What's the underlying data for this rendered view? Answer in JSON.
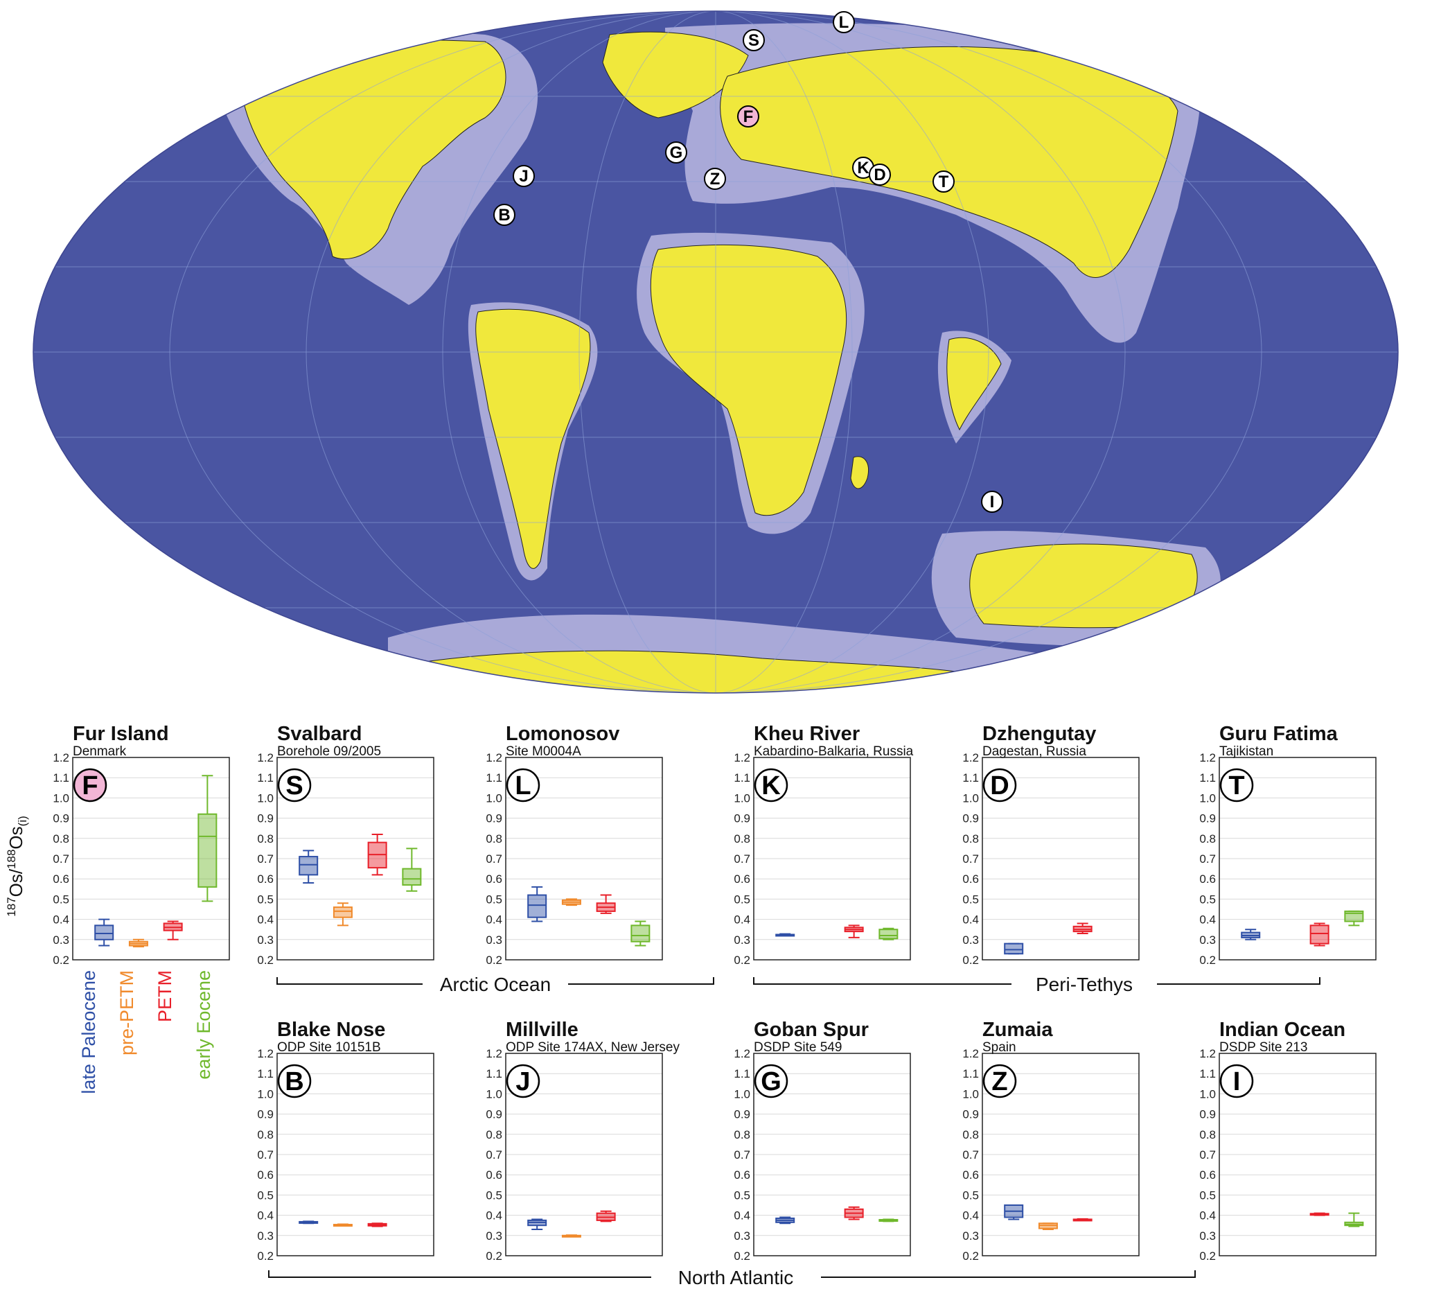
{
  "colors": {
    "ocean": "#4a55a2",
    "shelf": "#a9a9d8",
    "land": "#f0e83c",
    "late_paleocene": "#2e4fa6",
    "pre_petm": "#f08a2c",
    "petm": "#e8202a",
    "early_eocene": "#6fb82c"
  },
  "legend": {
    "late_paleocene": "late Paleocene",
    "pre_petm": "pre-PETM",
    "petm": "PETM",
    "early_eocene": "early Eocene"
  },
  "y_axis": {
    "label_main": "Os/",
    "label_sup1": "187",
    "label_sup2": "188",
    "label_tail": "Os",
    "label_sub": "(i)"
  },
  "groups": {
    "arctic": "Arctic Ocean",
    "tethys": "Peri-Tethys",
    "atlantic": "North Atlantic"
  },
  "map_markers": [
    {
      "letter": "L",
      "highlight": false
    },
    {
      "letter": "S",
      "highlight": false
    },
    {
      "letter": "F",
      "highlight": true
    },
    {
      "letter": "G",
      "highlight": false
    },
    {
      "letter": "J",
      "highlight": false
    },
    {
      "letter": "Z",
      "highlight": false
    },
    {
      "letter": "B",
      "highlight": false
    },
    {
      "letter": "K",
      "highlight": false
    },
    {
      "letter": "D",
      "highlight": false
    },
    {
      "letter": "T",
      "highlight": false
    },
    {
      "letter": "I",
      "highlight": false
    }
  ],
  "chart_data": {
    "type": "boxplot",
    "ylim": [
      0.2,
      1.2
    ],
    "yticks": [
      "0.2",
      "0.3",
      "0.4",
      "0.5",
      "0.6",
      "0.7",
      "0.8",
      "0.9",
      "1.0",
      "1.1",
      "1.2"
    ],
    "categories": [
      "late Paleocene",
      "pre-PETM",
      "PETM",
      "early Eocene"
    ],
    "panels": [
      {
        "id": "F",
        "title": "Fur Island",
        "subtitle": "Denmark",
        "badge": "F",
        "highlight": true,
        "boxes": [
          {
            "cat": 0,
            "min": 0.27,
            "q1": 0.3,
            "med": 0.33,
            "q3": 0.37,
            "max": 0.4
          },
          {
            "cat": 1,
            "min": 0.265,
            "q1": 0.27,
            "med": 0.28,
            "q3": 0.29,
            "max": 0.3
          },
          {
            "cat": 2,
            "min": 0.3,
            "q1": 0.345,
            "med": 0.36,
            "q3": 0.38,
            "max": 0.39
          },
          {
            "cat": 3,
            "min": 0.49,
            "q1": 0.56,
            "med": 0.81,
            "q3": 0.92,
            "max": 1.11
          }
        ]
      },
      {
        "id": "S",
        "title": "Svalbard",
        "subtitle": "Borehole 09/2005",
        "badge": "S",
        "highlight": false,
        "boxes": [
          {
            "cat": 0,
            "min": 0.58,
            "q1": 0.62,
            "med": 0.67,
            "q3": 0.71,
            "max": 0.74
          },
          {
            "cat": 1,
            "min": 0.37,
            "q1": 0.41,
            "med": 0.44,
            "q3": 0.46,
            "max": 0.48
          },
          {
            "cat": 2,
            "min": 0.62,
            "q1": 0.655,
            "med": 0.72,
            "q3": 0.78,
            "max": 0.82
          },
          {
            "cat": 3,
            "min": 0.54,
            "q1": 0.57,
            "med": 0.6,
            "q3": 0.65,
            "max": 0.75
          }
        ]
      },
      {
        "id": "L",
        "title": "Lomonosov",
        "subtitle": "Site M0004A",
        "badge": "L",
        "highlight": false,
        "boxes": [
          {
            "cat": 0,
            "min": 0.39,
            "q1": 0.41,
            "med": 0.47,
            "q3": 0.52,
            "max": 0.56
          },
          {
            "cat": 1,
            "min": 0.47,
            "q1": 0.475,
            "med": 0.485,
            "q3": 0.495,
            "max": 0.5
          },
          {
            "cat": 2,
            "min": 0.43,
            "q1": 0.44,
            "med": 0.46,
            "q3": 0.48,
            "max": 0.52
          },
          {
            "cat": 3,
            "min": 0.27,
            "q1": 0.29,
            "med": 0.32,
            "q3": 0.37,
            "max": 0.39
          }
        ]
      },
      {
        "id": "K",
        "title": "Kheu River",
        "subtitle": "Kabardino-Balkaria, Russia",
        "badge": "K",
        "highlight": false,
        "boxes": [
          {
            "cat": 0,
            "min": 0.318,
            "q1": 0.32,
            "med": 0.322,
            "q3": 0.325,
            "max": 0.328
          },
          {
            "cat": 2,
            "min": 0.31,
            "q1": 0.34,
            "med": 0.35,
            "q3": 0.36,
            "max": 0.37
          },
          {
            "cat": 3,
            "min": 0.3,
            "q1": 0.305,
            "med": 0.32,
            "q3": 0.35,
            "max": 0.355
          }
        ]
      },
      {
        "id": "D",
        "title": "Dzhengutay",
        "subtitle": "Dagestan, Russia",
        "badge": "D",
        "highlight": false,
        "boxes": [
          {
            "cat": 0,
            "min": 0.23,
            "q1": 0.23,
            "med": 0.25,
            "q3": 0.28,
            "max": 0.28
          },
          {
            "cat": 2,
            "min": 0.33,
            "q1": 0.34,
            "med": 0.35,
            "q3": 0.365,
            "max": 0.38
          }
        ]
      },
      {
        "id": "T",
        "title": "Guru Fatima",
        "subtitle": "Tajikistan",
        "badge": "T",
        "highlight": false,
        "boxes": [
          {
            "cat": 0,
            "min": 0.3,
            "q1": 0.31,
            "med": 0.32,
            "q3": 0.335,
            "max": 0.35
          },
          {
            "cat": 2,
            "min": 0.27,
            "q1": 0.28,
            "med": 0.33,
            "q3": 0.37,
            "max": 0.38
          },
          {
            "cat": 3,
            "min": 0.37,
            "q1": 0.39,
            "med": 0.43,
            "q3": 0.44,
            "max": 0.44
          }
        ]
      },
      {
        "id": "B",
        "title": "Blake Nose",
        "subtitle": "ODP Site 10151B",
        "badge": "B",
        "highlight": false,
        "boxes": [
          {
            "cat": 0,
            "min": 0.36,
            "q1": 0.362,
            "med": 0.365,
            "q3": 0.368,
            "max": 0.37
          },
          {
            "cat": 1,
            "min": 0.348,
            "q1": 0.35,
            "med": 0.352,
            "q3": 0.354,
            "max": 0.356
          },
          {
            "cat": 2,
            "min": 0.345,
            "q1": 0.348,
            "med": 0.352,
            "q3": 0.358,
            "max": 0.36
          }
        ]
      },
      {
        "id": "J",
        "title": "Millville",
        "subtitle": "ODP Site 174AX, New Jersey",
        "badge": "J",
        "highlight": false,
        "boxes": [
          {
            "cat": 0,
            "min": 0.33,
            "q1": 0.35,
            "med": 0.365,
            "q3": 0.375,
            "max": 0.38
          },
          {
            "cat": 1,
            "min": 0.295,
            "q1": 0.297,
            "med": 0.298,
            "q3": 0.3,
            "max": 0.302
          },
          {
            "cat": 2,
            "min": 0.37,
            "q1": 0.375,
            "med": 0.39,
            "q3": 0.41,
            "max": 0.42
          }
        ]
      },
      {
        "id": "G",
        "title": "Goban Spur",
        "subtitle": "DSDP Site 549",
        "badge": "G",
        "highlight": false,
        "boxes": [
          {
            "cat": 0,
            "min": 0.36,
            "q1": 0.365,
            "med": 0.375,
            "q3": 0.385,
            "max": 0.39
          },
          {
            "cat": 2,
            "min": 0.38,
            "q1": 0.39,
            "med": 0.41,
            "q3": 0.43,
            "max": 0.44
          },
          {
            "cat": 3,
            "min": 0.37,
            "q1": 0.372,
            "med": 0.375,
            "q3": 0.378,
            "max": 0.38
          }
        ]
      },
      {
        "id": "Z",
        "title": "Zumaia",
        "subtitle": "Spain",
        "badge": "Z",
        "highlight": false,
        "boxes": [
          {
            "cat": 0,
            "min": 0.38,
            "q1": 0.39,
            "med": 0.42,
            "q3": 0.45,
            "max": 0.45
          },
          {
            "cat": 1,
            "min": 0.33,
            "q1": 0.335,
            "med": 0.35,
            "q3": 0.36,
            "max": 0.36
          },
          {
            "cat": 2,
            "min": 0.375,
            "q1": 0.377,
            "med": 0.378,
            "q3": 0.38,
            "max": 0.382
          }
        ]
      },
      {
        "id": "I",
        "title": "Indian Ocean",
        "subtitle": "DSDP Site 213",
        "badge": "I",
        "highlight": false,
        "boxes": [
          {
            "cat": 2,
            "min": 0.4,
            "q1": 0.402,
            "med": 0.405,
            "q3": 0.408,
            "max": 0.41
          },
          {
            "cat": 3,
            "min": 0.345,
            "q1": 0.35,
            "med": 0.355,
            "q3": 0.365,
            "max": 0.41
          }
        ]
      }
    ]
  }
}
